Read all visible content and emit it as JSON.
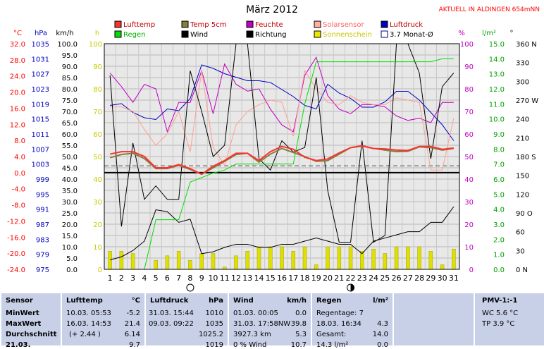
{
  "header": {
    "title": "März 2012",
    "station": "AKTUELL IN ALDINGEN 654mNN"
  },
  "legend": [
    {
      "label": "Lufttemp",
      "color": "#ff3030",
      "fill": true
    },
    {
      "label": "Temp 5cm",
      "color": "#808040",
      "fill": true
    },
    {
      "label": "Feuchte",
      "color": "#c000c0",
      "fill": true
    },
    {
      "label": "Solarsensor",
      "color": "#ffb0a0",
      "fill": true
    },
    {
      "label": "Luftdruck",
      "color": "#0000c0",
      "fill": true
    },
    {
      "label": "Regen",
      "color": "#00dd00",
      "fill": true
    },
    {
      "label": "Wind",
      "color": "#000000",
      "fill": true
    },
    {
      "label": "Richtung",
      "color": "#000000",
      "fill": true
    },
    {
      "label": "Sonnenschein",
      "color": "#e8e800",
      "fill": true
    },
    {
      "label": "3.7 Monat-Ø",
      "color": "#000080",
      "fill": false
    }
  ],
  "axis_units": {
    "temp": "°C",
    "press": "hPa",
    "wind": "km/h",
    "sun": "h",
    "hum": "%",
    "rain": "l/m²",
    "dir": "°"
  },
  "chart_data": {
    "type": "line",
    "x": [
      1,
      2,
      3,
      4,
      5,
      6,
      7,
      8,
      9,
      10,
      11,
      12,
      13,
      14,
      15,
      16,
      17,
      18,
      19,
      20,
      21,
      22,
      23,
      24,
      25,
      26,
      27,
      28,
      29,
      30,
      31
    ],
    "axes": {
      "temp": {
        "ticks": [
          "32.0",
          "28.0",
          "24.0",
          "20.0",
          "16.0",
          "12.0",
          "8.0",
          "4.0",
          "0.0",
          "-4.0",
          "-8.0",
          "-12.0",
          "-16.0",
          "-20.0",
          "-24.0"
        ],
        "min": -24,
        "max": 32,
        "color": "#ff0000"
      },
      "press": {
        "ticks": [
          "1035",
          "1031",
          "1027",
          "1023",
          "1019",
          "1015",
          "1011",
          "1007",
          "1003",
          "999",
          "995",
          "991",
          "987",
          "983",
          "979",
          "975"
        ],
        "min": 975,
        "max": 1039,
        "color": "#0000c0"
      },
      "wind": {
        "ticks": [
          "100.0",
          "95.0",
          "90.0",
          "85.0",
          "80.0",
          "75.0",
          "70.0",
          "65.0",
          "60.0",
          "55.0",
          "50.0",
          "45.0",
          "40.0",
          "35.0",
          "30.0",
          "25.0",
          "20.0",
          "15.0",
          "10.0",
          "5.0",
          "0.0"
        ],
        "min": 0,
        "max": 100,
        "color": "#000000"
      },
      "sun": {
        "ticks": [
          "100",
          "90",
          "80",
          "70",
          "60",
          "50",
          "40",
          "30",
          "20",
          "10",
          "0"
        ],
        "min": 0,
        "max": 100,
        "color": "#c8c800"
      },
      "hum": {
        "ticks": [
          "100",
          "90",
          "80",
          "70",
          "60",
          "50",
          "40",
          "30",
          "20",
          "10",
          "0"
        ],
        "min": 0,
        "max": 100,
        "color": "#c000c0"
      },
      "rain": {
        "ticks": [
          "15.0",
          "14.0",
          "13.0",
          "12.0",
          "11.0",
          "10.0",
          "9.0",
          "8.0",
          "7.0",
          "6.0",
          "5.0",
          "4.0",
          "3.0",
          "2.0",
          "1.0",
          "0.0"
        ],
        "min": 0,
        "max": 15,
        "color": "#00a000"
      },
      "dir": {
        "ticks": [
          "360 N",
          "330",
          "300",
          "270 W",
          "240",
          "210",
          "180 S",
          "150",
          "120",
          "90 O",
          "60",
          "30",
          "0 N"
        ],
        "min": 0,
        "max": 360,
        "color": "#000000"
      }
    },
    "series": [
      {
        "name": "Luftdruck",
        "axis": "press",
        "color": "#0000c0",
        "width": 1,
        "values": [
          1021.5,
          1022,
          1019.5,
          1018,
          1017.5,
          1020.5,
          1020,
          1023.5,
          1033,
          1032,
          1030.5,
          1029.5,
          1028.5,
          1028.5,
          1028,
          1026,
          1024,
          1021.5,
          1020.5,
          1027.5,
          1025,
          1023.5,
          1021,
          1021,
          1022.5,
          1025.5,
          1025.5,
          1023,
          1019.5,
          1016,
          1011.5
        ]
      },
      {
        "name": "Feuchte",
        "axis": "hum",
        "color": "#c000c0",
        "width": 1,
        "values": [
          87,
          81,
          74,
          82,
          80,
          61,
          74,
          74,
          88,
          69,
          91,
          82,
          79,
          80,
          71,
          64,
          61,
          86,
          94,
          77,
          71,
          69,
          73,
          73,
          72,
          68,
          66,
          67,
          65,
          74,
          74
        ]
      },
      {
        "name": "Solarsensor",
        "axis": "hum",
        "color": "#ffa090",
        "width": 1,
        "values": [
          72,
          72,
          70,
          62,
          55,
          60,
          70,
          52,
          88,
          54,
          46,
          64,
          70,
          73,
          75,
          74,
          59,
          88,
          80,
          74,
          73,
          77,
          74,
          73,
          73,
          76,
          75,
          74,
          44,
          44,
          67
        ]
      },
      {
        "name": "Wind",
        "axis": "wind",
        "color": "#000000",
        "width": 1,
        "values": [
          86,
          19,
          56,
          31,
          37,
          31,
          31,
          88,
          70,
          50,
          55,
          100,
          100,
          49,
          44,
          57,
          52,
          54,
          85,
          35,
          12,
          12,
          57,
          12,
          15,
          100,
          100,
          87,
          49,
          81,
          87
        ]
      },
      {
        "name": "Richtung",
        "axis": "dir",
        "color": "#000000",
        "width": 1,
        "values": [
          15,
          20,
          30,
          45,
          95,
          92,
          75,
          80,
          25,
          28,
          35,
          40,
          40,
          35,
          35,
          40,
          40,
          45,
          50,
          45,
          40,
          40,
          25,
          45,
          50,
          55,
          60,
          60,
          75,
          75,
          100
        ]
      },
      {
        "name": "Regen",
        "axis": "rain",
        "color": "#00dd00",
        "width": 1,
        "values": [
          0,
          0,
          0,
          0,
          3.3,
          3.3,
          3.3,
          5.8,
          6.1,
          6.4,
          6.6,
          7,
          7,
          7,
          7,
          7,
          7,
          11,
          13.8,
          13.8,
          13.8,
          13.8,
          13.8,
          13.8,
          13.8,
          13.8,
          13.8,
          13.8,
          13.8,
          14,
          14
        ]
      },
      {
        "name": "Temp 5cm",
        "axis": "temp",
        "color": "#808040",
        "width": 2,
        "values": [
          3.7,
          4.5,
          4.8,
          3.5,
          1.0,
          1.0,
          1.8,
          0.8,
          -0.4,
          1.2,
          2.8,
          4.5,
          4.8,
          2.6,
          4.6,
          6,
          5,
          4.0,
          2.8,
          3.0,
          4.6,
          6.2,
          6.6,
          6.0,
          5.6,
          5.2,
          5.3,
          6.4,
          6.2,
          5.6,
          6.0
        ]
      },
      {
        "name": "Lufttemp",
        "axis": "temp",
        "color": "#ff3030",
        "width": 2,
        "values": [
          4.6,
          5.2,
          5.2,
          4.0,
          1.2,
          1.2,
          2.0,
          1.0,
          -0.4,
          1.6,
          3.0,
          4.8,
          4.8,
          3.0,
          5.2,
          6.5,
          5.8,
          3.8,
          3.0,
          3.4,
          4.9,
          6.2,
          6.7,
          6.0,
          5.9,
          5.6,
          5.5,
          6.5,
          6.5,
          5.8,
          6.1
        ]
      }
    ],
    "sunshine_bars": {
      "name": "Sonnenschein",
      "axis": "wind",
      "color": "#e0e000",
      "values": [
        8,
        8,
        7,
        0,
        4,
        6,
        8,
        4,
        7,
        7,
        1,
        6,
        8,
        10,
        10,
        10,
        8,
        10,
        2,
        10,
        10,
        10,
        8,
        9,
        7,
        10,
        10,
        10,
        8,
        2,
        9
      ]
    },
    "monthly_avg_temp": 3.7,
    "reference_lines": [
      {
        "axis": "temp",
        "value": 0,
        "color": "#000000",
        "width": 2
      },
      {
        "axis": "temp",
        "value": 1.7,
        "color": "#505050",
        "width": 1,
        "dash": "6,4"
      }
    ],
    "moon": [
      {
        "day": 8,
        "phase": "full"
      },
      {
        "day": 22,
        "phase": "new"
      }
    ]
  },
  "footer": {
    "sensor": {
      "header": "Sensor",
      "rows": [
        "MinWert",
        "MaxWert",
        "Durchschnitt",
        "21.03."
      ]
    },
    "lufttemp": {
      "header": "Lufttemp",
      "unit": "°C",
      "rows": [
        [
          "10.03.  05:53",
          "-5.2"
        ],
        [
          "16.03.  14:53",
          "21.4"
        ],
        [
          "(+ 2.44 )",
          "6.14"
        ],
        [
          "",
          "9.7"
        ]
      ]
    },
    "luftdruck": {
      "header": "Luftdruck",
      "unit": "hPa",
      "rows": [
        [
          "31.03.  15:44",
          "1010"
        ],
        [
          "09.03.  09:22",
          "1035"
        ],
        [
          "",
          "1025.2"
        ],
        [
          "",
          "1019"
        ]
      ]
    },
    "wind": {
      "header": "Wind",
      "unit": "km/h",
      "rows": [
        [
          "01.03.  00:05",
          "0.0"
        ],
        [
          "31.03.  17:58NW",
          "39.8"
        ],
        [
          "3927.3 km",
          "5.3"
        ],
        [
          "0 % Wind",
          "10.7"
        ]
      ]
    },
    "regen": {
      "header": "Regen",
      "unit": "l/m²",
      "rows": [
        [
          "Regentage: 7",
          ""
        ],
        [
          "18.03.  16:34",
          "4.3"
        ],
        [
          "Gesamt:",
          "14.0"
        ],
        [
          "14.3 l/m²",
          "0.0"
        ]
      ]
    },
    "pmv": {
      "header": "PMV-1:-1",
      "rows": [
        "WC 5.6 °C",
        "TP 3.9 °C"
      ]
    }
  }
}
